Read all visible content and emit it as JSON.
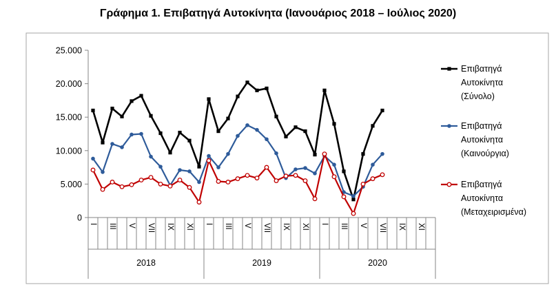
{
  "chart_data": {
    "type": "line",
    "title": "Γράφημα 1. Επιβατηγά Αυτοκίνητα (Ιανουάριος 2018 – Ιούλιος 2020)",
    "xlabel": "",
    "ylabel": "",
    "ylim": [
      0,
      25000
    ],
    "y_ticks": [
      "25.000",
      "20.000",
      "15.000",
      "10.000",
      "5.000",
      "0"
    ],
    "y_tick_values": [
      25000,
      20000,
      15000,
      10000,
      5000,
      0
    ],
    "years": [
      "2018",
      "2019",
      "2020"
    ],
    "months_per_year": 12,
    "month_tick_labels": [
      "I",
      "",
      "III",
      "",
      "V",
      "",
      "VII",
      "",
      "IX",
      "",
      "XI",
      ""
    ],
    "grid": false,
    "legend_position": "right",
    "series": [
      {
        "name": "Επιβατηγά Αυτοκίνητα (Σύνολο)",
        "legend_lines": [
          "Επιβατηγά",
          "Αυτοκίνητα",
          "(Σύνολο)"
        ],
        "color": "#000000",
        "marker": "filled-square",
        "values": [
          16000,
          11200,
          16300,
          15100,
          17400,
          18200,
          15200,
          12600,
          9700,
          12700,
          11500,
          7600,
          17700,
          12900,
          14800,
          18100,
          20200,
          19000,
          19300,
          15100,
          12100,
          13500,
          12900,
          9400,
          19000,
          14000,
          6900,
          2700,
          9500,
          13700,
          16000
        ]
      },
      {
        "name": "Επιβατηγά Αυτοκίνητα (Καινούργια)",
        "legend_lines": [
          "Επιβατηγά",
          "Αυτοκίνητα",
          "(Καινούργια)"
        ],
        "color": "#2e5b9a",
        "marker": "filled-circle",
        "values": [
          8800,
          6800,
          11000,
          10500,
          12400,
          12500,
          9100,
          7600,
          4800,
          7100,
          6900,
          5300,
          9200,
          7500,
          9500,
          12200,
          13800,
          13100,
          11700,
          9600,
          5900,
          7200,
          7400,
          6600,
          9200,
          7900,
          3800,
          3200,
          4600,
          7900,
          9500
        ]
      },
      {
        "name": "Επιβατηγά Αυτοκίνητα (Μεταχειρισμένα)",
        "legend_lines": [
          "Επιβατηγά",
          "Αυτοκίνητα",
          "(Μεταχειρισμένα)"
        ],
        "color": "#c00000",
        "marker": "hollow-circle",
        "values": [
          7100,
          4200,
          5300,
          4600,
          4900,
          5600,
          6000,
          5000,
          4700,
          5600,
          4500,
          2300,
          8500,
          5400,
          5300,
          5800,
          6300,
          5900,
          7500,
          5500,
          6200,
          6300,
          5500,
          2800,
          9500,
          6100,
          3100,
          600,
          5000,
          5800,
          6400
        ]
      }
    ]
  }
}
